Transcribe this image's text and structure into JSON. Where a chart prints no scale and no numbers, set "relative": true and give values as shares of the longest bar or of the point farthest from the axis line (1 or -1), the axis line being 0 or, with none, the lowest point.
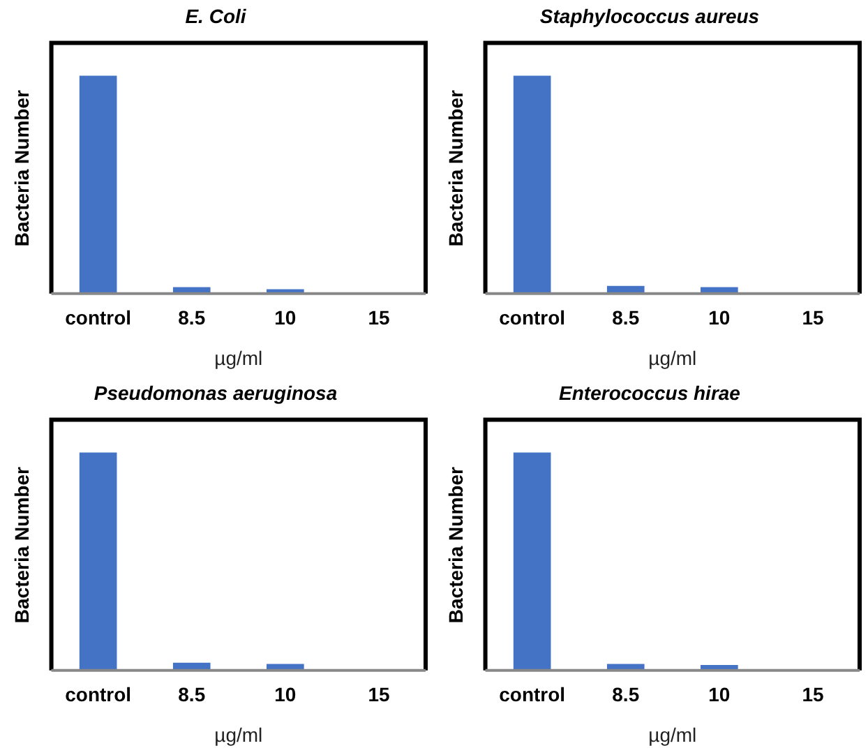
{
  "chart_data": [
    {
      "type": "bar",
      "title": "E. Coli",
      "xlabel": "µg/ml",
      "ylabel": "Bacteria Number",
      "categories": [
        "control",
        "8.5",
        "10",
        "15"
      ],
      "relative": true,
      "values": [
        1,
        0.03,
        0.02,
        0
      ],
      "color": "#4472c4",
      "grid": false,
      "legend": false
    },
    {
      "type": "bar",
      "title": "Staphylococcus aureus",
      "xlabel": "µg/ml",
      "ylabel": "Bacteria Number",
      "categories": [
        "control",
        "8.5",
        "10",
        "15"
      ],
      "relative": true,
      "values": [
        1,
        0.035,
        0.03,
        0
      ],
      "color": "#4472c4",
      "grid": false,
      "legend": false
    },
    {
      "type": "bar",
      "title": "Pseudomonas aeruginosa",
      "xlabel": "µg/ml",
      "ylabel": "Bacteria Number",
      "categories": [
        "control",
        "8.5",
        "10",
        "15"
      ],
      "relative": true,
      "values": [
        1,
        0.035,
        0.03,
        0
      ],
      "color": "#4472c4",
      "grid": false,
      "legend": false
    },
    {
      "type": "bar",
      "title": "Enterococcus hirae",
      "xlabel": "µg/ml",
      "ylabel": "Bacteria Number",
      "categories": [
        "control",
        "8.5",
        "10",
        "15"
      ],
      "relative": true,
      "values": [
        1,
        0.03,
        0.025,
        0
      ],
      "color": "#4472c4",
      "grid": false,
      "legend": false
    }
  ]
}
